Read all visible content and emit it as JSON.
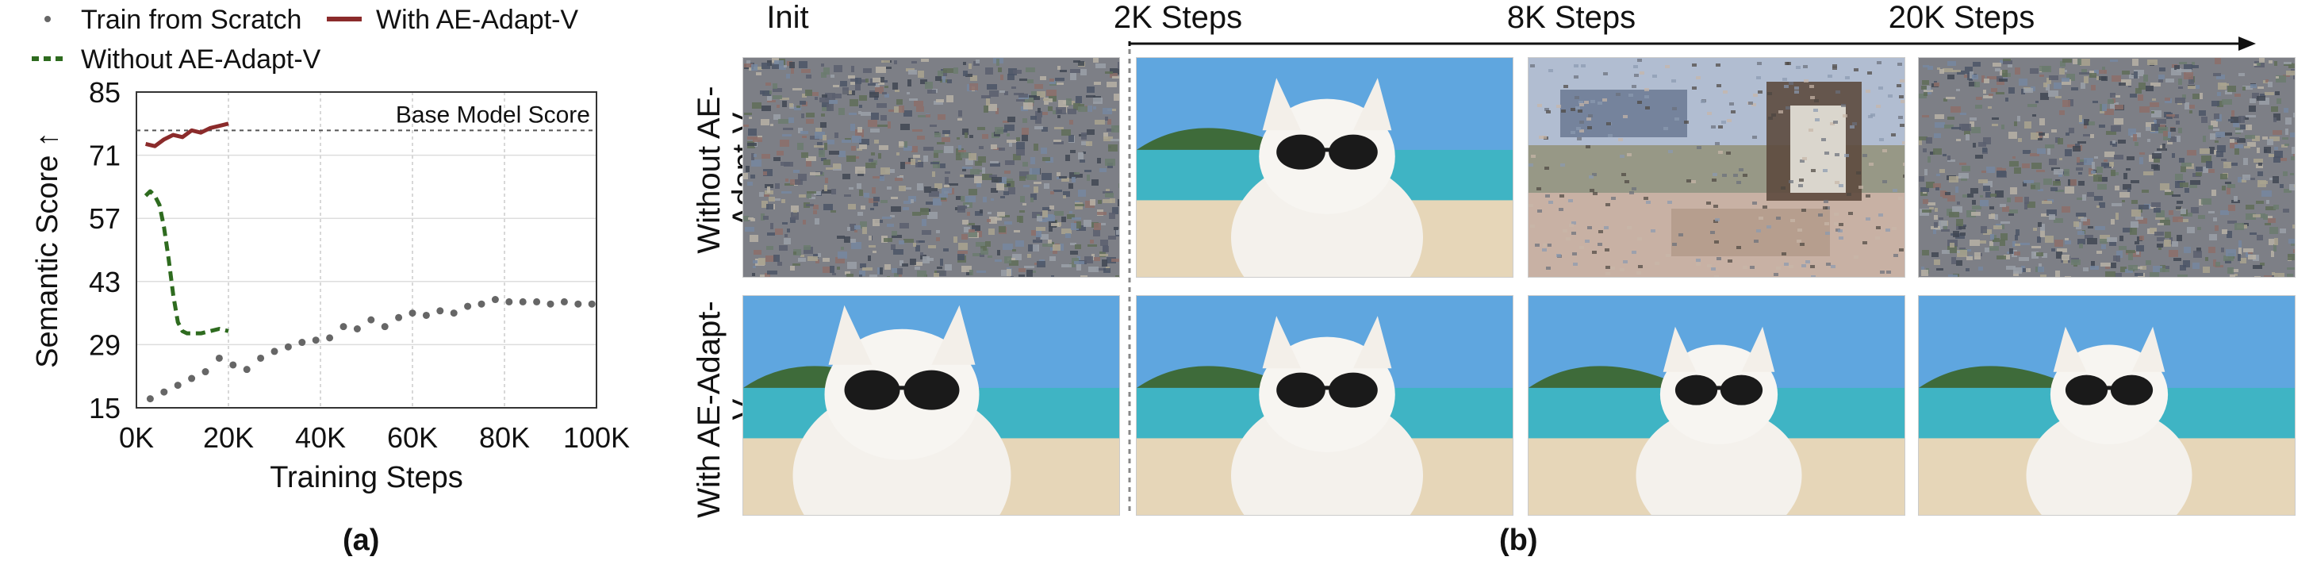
{
  "panel_a": {
    "caption": "(a)",
    "legend": [
      {
        "label": "Train from Scratch",
        "style": "dotted",
        "color": "#666666"
      },
      {
        "label": "With AE-Adapt-V",
        "style": "solid",
        "color": "#8b2b2b"
      },
      {
        "label": "Without AE-Adapt-V",
        "style": "dashed",
        "color": "#2e6b1f"
      }
    ],
    "reference_label": "Base Model Score"
  },
  "chart_data": {
    "type": "line",
    "xlabel": "Training Steps",
    "ylabel": "Semantic Score ↑",
    "xlim": [
      0,
      100000
    ],
    "ylim": [
      15,
      85
    ],
    "x_ticks": [
      0,
      20000,
      40000,
      60000,
      80000,
      100000
    ],
    "x_tick_labels": [
      "0K",
      "20K",
      "40K",
      "60K",
      "80K",
      "100K"
    ],
    "y_ticks": [
      15,
      29,
      43,
      57,
      71,
      85
    ],
    "grid": true,
    "legend_position": "top",
    "reference_line": {
      "label": "Base Model Score",
      "y": 76.5
    },
    "series": [
      {
        "name": "Train from Scratch",
        "style": "dotted",
        "color": "#666666",
        "x": [
          3000,
          6000,
          9000,
          12000,
          15000,
          18000,
          21000,
          24000,
          27000,
          30000,
          33000,
          36000,
          39000,
          42000,
          45000,
          48000,
          51000,
          54000,
          57000,
          60000,
          63000,
          66000,
          69000,
          72000,
          75000,
          78000,
          81000,
          84000,
          87000,
          90000,
          93000,
          96000,
          99000
        ],
        "values": [
          17,
          18.5,
          20,
          21.5,
          23,
          26,
          24.5,
          23.5,
          26,
          27.5,
          28.5,
          29.5,
          30,
          30.5,
          33,
          32.5,
          34.5,
          33,
          35,
          36,
          35.5,
          36.5,
          36,
          37.5,
          38,
          39,
          38.5,
          38.5,
          38.5,
          38,
          38.5,
          38,
          38
        ]
      },
      {
        "name": "With AE-Adapt-V",
        "style": "solid",
        "color": "#8b2b2b",
        "x": [
          2000,
          4000,
          6000,
          8000,
          10000,
          12000,
          14000,
          16000,
          18000,
          20000
        ],
        "values": [
          73.5,
          73,
          74.5,
          75.5,
          75,
          76.5,
          76,
          77,
          77.5,
          78
        ]
      },
      {
        "name": "Without AE-Adapt-V",
        "style": "dashed",
        "color": "#2e6b1f",
        "x": [
          2000,
          3000,
          4000,
          5000,
          6000,
          7000,
          8000,
          9000,
          10000,
          11000,
          12000,
          14000,
          16000,
          18000,
          20000
        ],
        "values": [
          62,
          63,
          62,
          60,
          55,
          48,
          40,
          34,
          32,
          31.5,
          31.5,
          31.5,
          32,
          32.5,
          32
        ]
      }
    ]
  },
  "panel_b": {
    "caption": "(b)",
    "column_headers": [
      "Init",
      "2K Steps",
      "8K Steps",
      "20K Steps"
    ],
    "row_headers": [
      "Without AE-Adapt-V",
      "With AE-Adapt-V"
    ],
    "images": [
      [
        "noise",
        "cat",
        "distorted",
        "noise"
      ],
      [
        "cat",
        "cat",
        "cat",
        "cat"
      ]
    ]
  }
}
